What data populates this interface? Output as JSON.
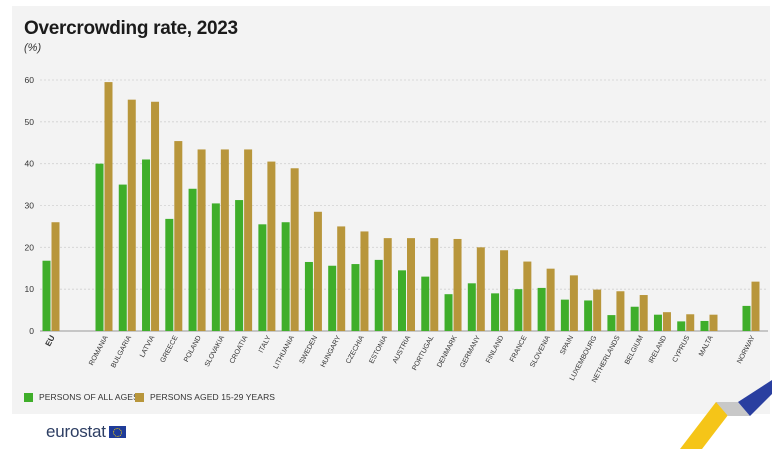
{
  "title": "Overcrowding rate, 2023",
  "unit": "(%)",
  "legend": {
    "all_ages": "PERSONS OF ALL AGES",
    "young": "PERSONS AGED 15-29 YEARS"
  },
  "brand": {
    "logo_text": "eurostat"
  },
  "colors": {
    "all_ages": "#3fae2a",
    "young": "#b8963b",
    "gridline": "#d2d2d2",
    "axis_text": "#333333"
  },
  "chart_data": {
    "type": "bar",
    "title": "Overcrowding rate, 2023",
    "ylabel": "(%)",
    "ylim": [
      0,
      60
    ],
    "yticks": [
      0,
      10,
      20,
      30,
      40,
      50,
      60
    ],
    "grid": true,
    "legend_position": "bottom-left",
    "categories": [
      "EU",
      "ROMANIA",
      "BULGARIA",
      "LATVIA",
      "GREECE",
      "POLAND",
      "SLOVAKIA",
      "CROATIA",
      "ITALY",
      "LITHUANIA",
      "SWEDEN",
      "HUNGARY",
      "CZECHIA",
      "ESTONIA",
      "AUSTRIA",
      "PORTUGAL",
      "DENMARK",
      "GERMANY",
      "FINLAND",
      "FRANCE",
      "SLOVENIA",
      "SPAIN",
      "LUXEMBOURG",
      "NETHERLANDS",
      "BELGIUM",
      "IRELAND",
      "CYPRUS",
      "MALTA",
      "NORWAY"
    ],
    "series": [
      {
        "name": "PERSONS OF ALL AGES",
        "values": [
          16.8,
          40.0,
          35.0,
          41.0,
          26.8,
          34.0,
          30.5,
          31.3,
          25.5,
          26.0,
          16.5,
          15.6,
          16.0,
          17.0,
          14.5,
          13.0,
          8.8,
          11.4,
          9.0,
          10.0,
          10.3,
          7.5,
          7.3,
          3.8,
          5.8,
          3.9,
          2.3,
          2.4,
          6.0
        ]
      },
      {
        "name": "PERSONS AGED 15-29 YEARS",
        "values": [
          26.0,
          59.5,
          55.3,
          54.8,
          45.4,
          43.4,
          43.4,
          43.4,
          40.5,
          38.9,
          28.5,
          25.0,
          23.8,
          22.2,
          22.2,
          22.2,
          22.0,
          20.0,
          19.3,
          16.6,
          14.9,
          13.3,
          9.9,
          9.5,
          8.6,
          4.5,
          4.0,
          3.9,
          11.8
        ]
      }
    ]
  }
}
